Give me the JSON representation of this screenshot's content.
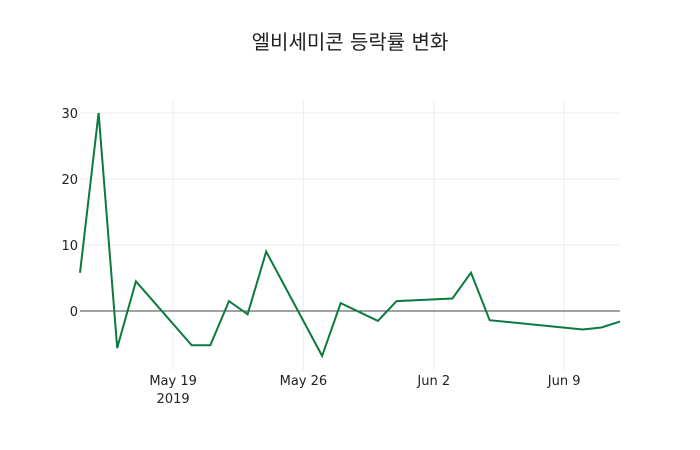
{
  "chart_data": {
    "type": "line",
    "title": "엘비세미콘 등락률 변화",
    "xlabel": "",
    "ylabel": "",
    "x": [
      "2019-05-14",
      "2019-05-15",
      "2019-05-16",
      "2019-05-17",
      "2019-05-20",
      "2019-05-21",
      "2019-05-22",
      "2019-05-23",
      "2019-05-24",
      "2019-05-27",
      "2019-05-28",
      "2019-05-30",
      "2019-05-31",
      "2019-06-03",
      "2019-06-04",
      "2019-06-05",
      "2019-06-10",
      "2019-06-11",
      "2019-06-12"
    ],
    "series": [
      {
        "name": "등락률",
        "color": "#0a7a3e",
        "values": [
          5.8,
          30.0,
          -5.6,
          4.5,
          -5.2,
          -5.2,
          1.5,
          -0.5,
          9.0,
          -6.8,
          1.2,
          -1.5,
          1.5,
          1.9,
          5.8,
          -1.4,
          -2.8,
          -2.5,
          -1.6
        ]
      }
    ],
    "x_ticks": [
      {
        "date": "2019-05-19",
        "label": "May 19",
        "sublabel": "2019"
      },
      {
        "date": "2019-05-26",
        "label": "May 26"
      },
      {
        "date": "2019-06-02",
        "label": "Jun 2"
      },
      {
        "date": "2019-06-09",
        "label": "Jun 9"
      }
    ],
    "y_ticks": [
      0,
      10,
      20,
      30
    ],
    "ylim": [
      -8.9,
      32.0
    ],
    "xlim": [
      "2019-05-14",
      "2019-06-12"
    ],
    "grid": true,
    "zero_line": true,
    "legend": "none"
  }
}
